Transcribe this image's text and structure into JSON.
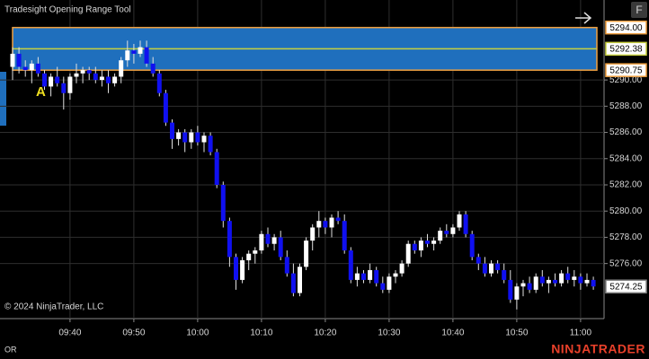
{
  "chart_data": {
    "type": "candlestick",
    "title": "Tradesight Opening Range Tool",
    "copyright": "© 2024 NinjaTrader, LLC",
    "annotation": "A",
    "footer_label": "OR",
    "brand": "NINJATRADER",
    "button": "F",
    "up_color": "#ffffff",
    "down_color": "#1010f0",
    "range_color": "#1f6fbd",
    "range_border_color": "#f0a040",
    "mid_color": "#c8d040",
    "grid": true,
    "ylim": [
      5271.8,
      5296.1
    ],
    "yticks": [
      {
        "value": 5276,
        "label": "5276.00"
      },
      {
        "value": 5278,
        "label": "5278.00"
      },
      {
        "value": 5280,
        "label": "5280.00"
      },
      {
        "value": 5282,
        "label": "5282.00"
      },
      {
        "value": 5284,
        "label": "5284.00"
      },
      {
        "value": 5286,
        "label": "5286.00"
      },
      {
        "value": 5288,
        "label": "5288.00"
      },
      {
        "value": 5290,
        "label": "5290.00"
      }
    ],
    "opening_range": {
      "high": {
        "value": 5294,
        "label": "5294.00"
      },
      "mid": 5292.38,
      "low": 5290.75
    },
    "last_price": 5274.25,
    "categories": [
      null,
      null,
      null,
      null,
      null,
      null,
      null,
      null,
      null,
      "09:40",
      null,
      null,
      null,
      null,
      null,
      null,
      null,
      null,
      null,
      "09:50",
      null,
      null,
      null,
      null,
      null,
      null,
      null,
      null,
      null,
      "10:00",
      null,
      null,
      null,
      null,
      null,
      null,
      null,
      null,
      null,
      "10:10",
      null,
      null,
      null,
      null,
      null,
      null,
      null,
      null,
      null,
      "10:20",
      null,
      null,
      null,
      null,
      null,
      null,
      null,
      null,
      null,
      "10:30",
      null,
      null,
      null,
      null,
      null,
      null,
      null,
      null,
      null,
      "10:40",
      null,
      null,
      null,
      null,
      null,
      null,
      null,
      null,
      null,
      "10:50",
      null,
      null,
      null,
      null,
      null,
      null,
      null,
      null,
      null,
      "11:00",
      null,
      null
    ],
    "open": [
      5291.0,
      5292.0,
      5291.0,
      5290.75,
      5291.25,
      5290.5,
      5289.5,
      5290.25,
      5289.75,
      5289.0,
      5290.25,
      5290.5,
      5290.75,
      5290.5,
      5290.0,
      5290.25,
      5289.75,
      5290.25,
      5291.5,
      5292.25,
      5292.0,
      5292.5,
      5291.25,
      5290.5,
      5289.0,
      5286.75,
      5285.5,
      5286.0,
      5285.25,
      5286.0,
      5285.25,
      5285.75,
      5284.5,
      5282.0,
      5279.25,
      5276.5,
      5274.75,
      5276.25,
      5276.75,
      5277.0,
      5278.25,
      5277.5,
      5278.0,
      5276.5,
      5275.25,
      5273.75,
      5275.75,
      5277.75,
      5278.75,
      5279.25,
      5278.75,
      5279.5,
      5279.25,
      5277.0,
      5274.75,
      5275.25,
      5274.75,
      5275.5,
      5274.5,
      5274.0,
      5275.0,
      5275.25,
      5276.0,
      5277.5,
      5277.0,
      5277.75,
      5277.5,
      5277.75,
      5278.5,
      5278.25,
      5278.75,
      5279.75,
      5278.25,
      5276.5,
      5276.0,
      5275.25,
      5276.0,
      5275.5,
      5274.75,
      5273.25,
      5274.25,
      5274.5,
      5274.0,
      5275.0,
      5274.5,
      5274.75,
      5274.5,
      5275.25,
      5274.75,
      5275.0,
      5274.5,
      5274.75
    ],
    "high": [
      5292.5,
      5292.5,
      5291.5,
      5291.5,
      5291.75,
      5290.75,
      5290.5,
      5291.0,
      5290.25,
      5290.5,
      5291.25,
      5291.0,
      5291.0,
      5291.0,
      5290.75,
      5290.75,
      5290.5,
      5291.75,
      5293.0,
      5292.75,
      5293.0,
      5293.0,
      5291.75,
      5290.75,
      5289.25,
      5287.0,
      5286.25,
      5286.25,
      5286.25,
      5286.5,
      5286.0,
      5286.0,
      5284.75,
      5282.25,
      5279.5,
      5276.75,
      5276.5,
      5277.0,
      5277.25,
      5278.5,
      5278.75,
      5278.25,
      5278.5,
      5277.0,
      5276.0,
      5276.0,
      5278.0,
      5279.0,
      5280.0,
      5279.5,
      5279.75,
      5280.0,
      5279.75,
      5277.25,
      5275.75,
      5275.5,
      5276.0,
      5275.75,
      5275.0,
      5275.25,
      5275.5,
      5276.25,
      5277.75,
      5277.75,
      5278.0,
      5278.25,
      5278.0,
      5278.75,
      5279.0,
      5279.0,
      5280.0,
      5280.0,
      5278.5,
      5276.75,
      5276.5,
      5276.25,
      5276.25,
      5276.0,
      5275.5,
      5274.5,
      5274.75,
      5275.0,
      5275.25,
      5275.5,
      5275.0,
      5275.25,
      5275.5,
      5275.75,
      5275.5,
      5275.25,
      5275.25,
      5275.0
    ],
    "low": [
      5290.0,
      5290.5,
      5290.25,
      5289.75,
      5290.25,
      5289.25,
      5288.75,
      5289.5,
      5287.75,
      5288.5,
      5289.75,
      5289.75,
      5290.0,
      5289.75,
      5289.5,
      5289.0,
      5289.5,
      5289.75,
      5291.0,
      5291.25,
      5291.75,
      5291.0,
      5290.25,
      5288.75,
      5286.5,
      5284.75,
      5285.0,
      5284.5,
      5284.75,
      5285.0,
      5284.5,
      5284.25,
      5281.75,
      5278.75,
      5275.75,
      5274.0,
      5274.5,
      5275.5,
      5276.0,
      5276.75,
      5277.25,
      5277.0,
      5276.25,
      5275.0,
      5273.5,
      5273.5,
      5275.5,
      5277.0,
      5278.0,
      5278.25,
      5278.0,
      5279.0,
      5276.75,
      5274.5,
      5274.25,
      5274.5,
      5274.5,
      5274.25,
      5273.75,
      5273.75,
      5274.5,
      5275.0,
      5275.75,
      5276.75,
      5276.5,
      5277.25,
      5277.0,
      5277.5,
      5278.0,
      5278.0,
      5278.5,
      5278.0,
      5276.25,
      5275.5,
      5275.0,
      5275.0,
      5275.25,
      5274.5,
      5273.0,
      5272.5,
      5273.5,
      5273.75,
      5273.75,
      5274.25,
      5273.75,
      5274.25,
      5274.25,
      5274.5,
      5274.25,
      5274.0,
      5274.25,
      5274.0
    ],
    "close": [
      5292.0,
      5291.0,
      5290.75,
      5291.25,
      5290.5,
      5289.5,
      5290.25,
      5289.75,
      5289.0,
      5290.25,
      5290.5,
      5290.75,
      5290.5,
      5290.0,
      5290.25,
      5289.75,
      5290.25,
      5291.5,
      5292.25,
      5292.0,
      5292.5,
      5291.25,
      5290.5,
      5289.0,
      5286.75,
      5285.5,
      5286.0,
      5285.25,
      5286.0,
      5285.25,
      5285.75,
      5284.5,
      5282.0,
      5279.25,
      5276.5,
      5274.75,
      5276.25,
      5276.75,
      5277.0,
      5278.25,
      5277.5,
      5278.0,
      5276.5,
      5275.25,
      5273.75,
      5275.75,
      5277.75,
      5278.75,
      5279.25,
      5278.75,
      5279.5,
      5279.25,
      5277.0,
      5274.75,
      5275.25,
      5274.75,
      5275.5,
      5274.5,
      5274.0,
      5275.0,
      5275.25,
      5276.0,
      5277.5,
      5277.0,
      5277.75,
      5277.5,
      5277.75,
      5278.5,
      5278.25,
      5278.75,
      5279.75,
      5278.25,
      5276.5,
      5276.0,
      5275.25,
      5276.0,
      5275.5,
      5274.75,
      5273.25,
      5274.25,
      5274.5,
      5274.0,
      5275.0,
      5274.5,
      5274.75,
      5274.5,
      5275.25,
      5274.75,
      5275.0,
      5274.5,
      5274.75,
      5274.25
    ]
  }
}
